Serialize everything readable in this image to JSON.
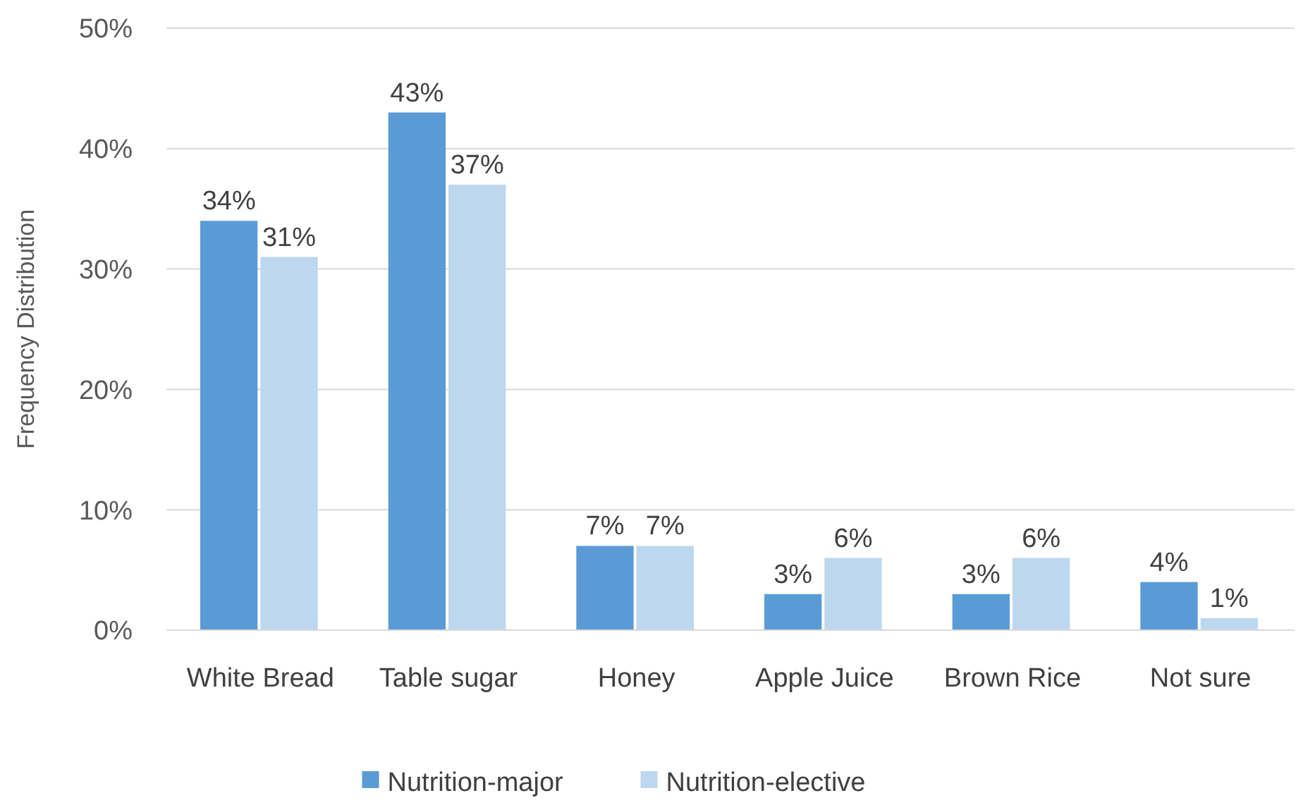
{
  "chart_data": {
    "type": "bar",
    "ylabel": "Frequency Distribution",
    "categories": [
      "White Bread",
      "Table sugar",
      "Honey",
      "Apple Juice",
      "Brown Rice",
      "Not sure"
    ],
    "series": [
      {
        "name": "Nutrition-major",
        "color": "#5b9bd5",
        "values": [
          34,
          43,
          7,
          3,
          3,
          4
        ],
        "value_labels": [
          "34%",
          "43%",
          "7%",
          "3%",
          "3%",
          "4%"
        ]
      },
      {
        "name": "Nutrition-elective",
        "color": "#bdd7ee",
        "values": [
          31,
          37,
          7,
          6,
          6,
          1
        ],
        "value_labels": [
          "31%",
          "37%",
          "7%",
          "6%",
          "6%",
          "1%"
        ]
      }
    ],
    "ylim": [
      0,
      50
    ],
    "yticks": [
      {
        "value": 0,
        "label": "0%"
      },
      {
        "value": 10,
        "label": "10%"
      },
      {
        "value": 20,
        "label": "20%"
      },
      {
        "value": 30,
        "label": "30%"
      },
      {
        "value": 40,
        "label": "40%"
      },
      {
        "value": 50,
        "label": "50%"
      }
    ],
    "grid": "y",
    "legend": "bottom"
  }
}
